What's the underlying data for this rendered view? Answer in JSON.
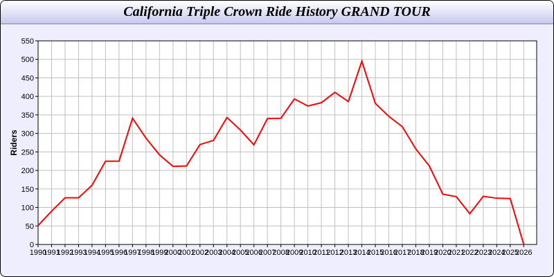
{
  "chart_data": {
    "type": "line",
    "title": "California Triple Crown Ride History GRAND TOUR",
    "xlabel": "",
    "ylabel": "Riders",
    "ylim": [
      0,
      550
    ],
    "yticks": [
      0,
      50,
      100,
      150,
      200,
      250,
      300,
      350,
      400,
      450,
      500,
      550
    ],
    "grid": true,
    "line_color": "#ff0000",
    "x": [
      1990,
      1991,
      1992,
      1993,
      1994,
      1995,
      1996,
      1997,
      1998,
      1999,
      2000,
      2001,
      2002,
      2003,
      2004,
      2005,
      2006,
      2007,
      2008,
      2009,
      2010,
      2011,
      2012,
      2013,
      2014,
      2015,
      2016,
      2017,
      2018,
      2019,
      2020,
      2021,
      2022,
      2023,
      2024,
      2025,
      2026
    ],
    "series": [
      {
        "values": [
          51,
          90,
          126,
          126,
          160,
          225,
          225,
          341,
          287,
          242,
          211,
          212,
          270,
          281,
          343,
          309,
          269,
          340,
          341,
          393,
          374,
          383,
          411,
          386,
          495,
          381,
          346,
          318,
          258,
          212,
          136,
          129,
          83,
          130,
          125,
          124,
          0
        ]
      }
    ]
  }
}
